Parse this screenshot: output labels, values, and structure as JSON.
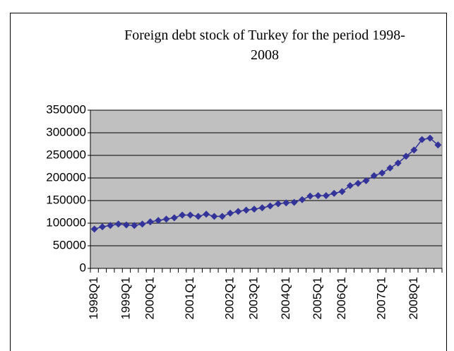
{
  "chart_data": {
    "type": "line",
    "title": "Foreign debt stock of Turkey for the period 1998-2008",
    "categories": [
      "1998Q1",
      null,
      null,
      null,
      "1999Q1",
      null,
      null,
      "2000Q1",
      null,
      null,
      null,
      null,
      "2001Q1",
      null,
      null,
      null,
      null,
      "2002Q1",
      null,
      null,
      "2003Q1",
      null,
      null,
      null,
      "2004Q1",
      null,
      null,
      null,
      "2005Q1",
      null,
      null,
      "2006Q1",
      null,
      null,
      null,
      null,
      "2007Q1",
      null,
      null,
      null,
      "2008Q1",
      null,
      null,
      null
    ],
    "values": [
      87000,
      92000,
      95000,
      98000,
      96000,
      95000,
      98000,
      103000,
      106000,
      109000,
      112000,
      118000,
      118000,
      115000,
      120000,
      115000,
      115000,
      122000,
      126000,
      129000,
      131000,
      134000,
      138000,
      143000,
      145000,
      146000,
      152000,
      160000,
      161000,
      161000,
      166000,
      170000,
      183000,
      188000,
      194000,
      205000,
      211000,
      222000,
      233000,
      248000,
      262000,
      285000,
      288000,
      273000
    ],
    "color": "#333399",
    "plot_color": "#c0c0c0",
    "ylim": [
      0,
      350000
    ],
    "yticks": [
      0,
      50000,
      100000,
      150000,
      200000,
      250000,
      300000,
      350000
    ],
    "grid": true
  }
}
